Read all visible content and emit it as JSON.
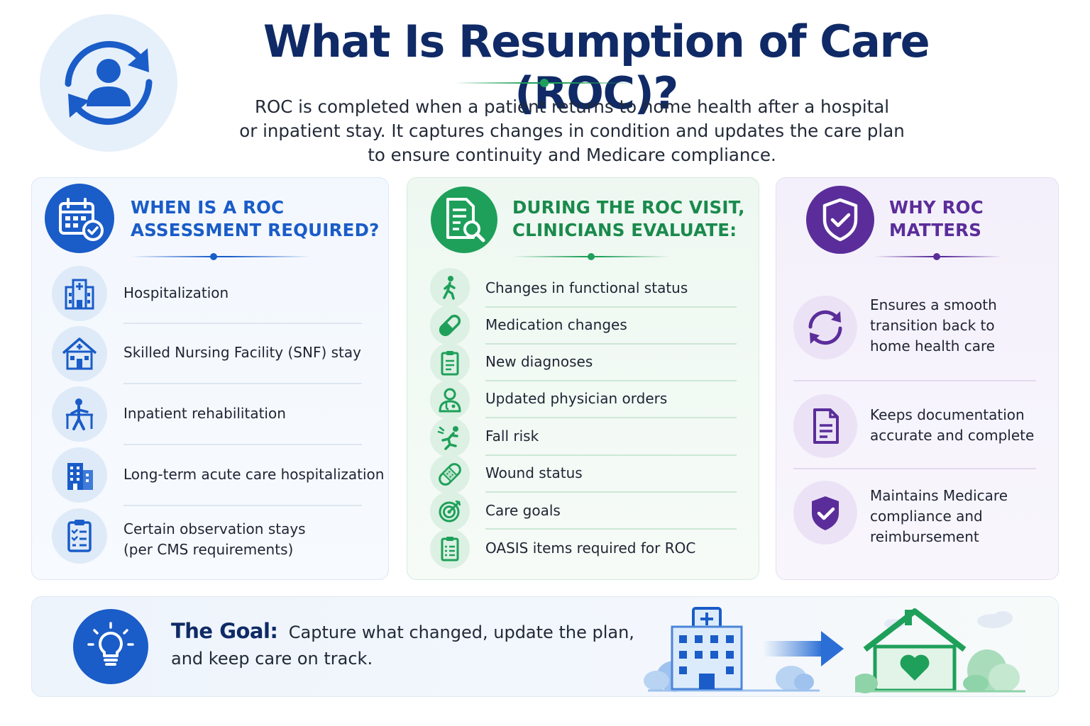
{
  "header": {
    "title": "What Is Resumption of Care (ROC)?",
    "intro_lines": [
      "ROC is completed when a patient returns to home health after a hospital",
      "or inpatient stay. It captures changes in condition and updates the care plan",
      "to ensure continuity and Medicare compliance."
    ],
    "icon": "person-refresh-icon"
  },
  "when_card": {
    "title_lines": [
      "WHEN IS A ROC",
      "ASSESSMENT REQUIRED?"
    ],
    "icon": "calendar-check-icon",
    "items": [
      {
        "icon": "hospital-icon",
        "lines": [
          "Hospitalization"
        ]
      },
      {
        "icon": "nursing-home-icon",
        "lines": [
          "Skilled Nursing Facility (SNF) stay"
        ]
      },
      {
        "icon": "rehabilitation-icon",
        "lines": [
          "Inpatient rehabilitation"
        ]
      },
      {
        "icon": "building-icon",
        "lines": [
          "Long-term acute care hospitalization"
        ]
      },
      {
        "icon": "clipboard-list-icon",
        "lines": [
          "Certain observation stays",
          "(per CMS requirements)"
        ]
      }
    ]
  },
  "during_card": {
    "title_lines": [
      "DURING THE ROC VISIT,",
      "CLINICIANS EVALUATE:"
    ],
    "icon": "document-search-icon",
    "items": [
      {
        "icon": "walking-person-icon",
        "label": "Changes in functional status"
      },
      {
        "icon": "pill-icon",
        "label": "Medication changes"
      },
      {
        "icon": "clipboard-icon",
        "label": "New diagnoses"
      },
      {
        "icon": "physician-icon",
        "label": "Updated physician orders"
      },
      {
        "icon": "falling-person-icon",
        "label": "Fall risk"
      },
      {
        "icon": "bandage-icon",
        "label": "Wound status"
      },
      {
        "icon": "target-icon",
        "label": "Care goals"
      },
      {
        "icon": "clipboard-list-icon",
        "label": "OASIS items required for ROC"
      }
    ]
  },
  "why_card": {
    "title_lines": [
      "WHY ROC",
      "MATTERS"
    ],
    "icon": "shield-check-icon",
    "items": [
      {
        "icon": "sync-arrows-icon",
        "lines": [
          "Ensures a smooth",
          "transition back to",
          "home health care"
        ]
      },
      {
        "icon": "document-icon",
        "lines": [
          "Keeps documentation",
          "accurate and complete"
        ]
      },
      {
        "icon": "shield-check-icon",
        "lines": [
          "Maintains Medicare",
          "compliance and",
          "reimbursement"
        ]
      }
    ]
  },
  "goal": {
    "icon": "lightbulb-icon",
    "label": "The Goal:",
    "text_line1": "Capture what changed, update the plan,",
    "text_line2": "and keep care on track.",
    "illustration": [
      "hospital-icon",
      "arrow-right-icon",
      "home-heart-icon"
    ]
  },
  "colors": {
    "navy": "#0f2a66",
    "blue": "#1a5cc8",
    "green": "#1ea05a",
    "purple": "#5b2d9a"
  }
}
